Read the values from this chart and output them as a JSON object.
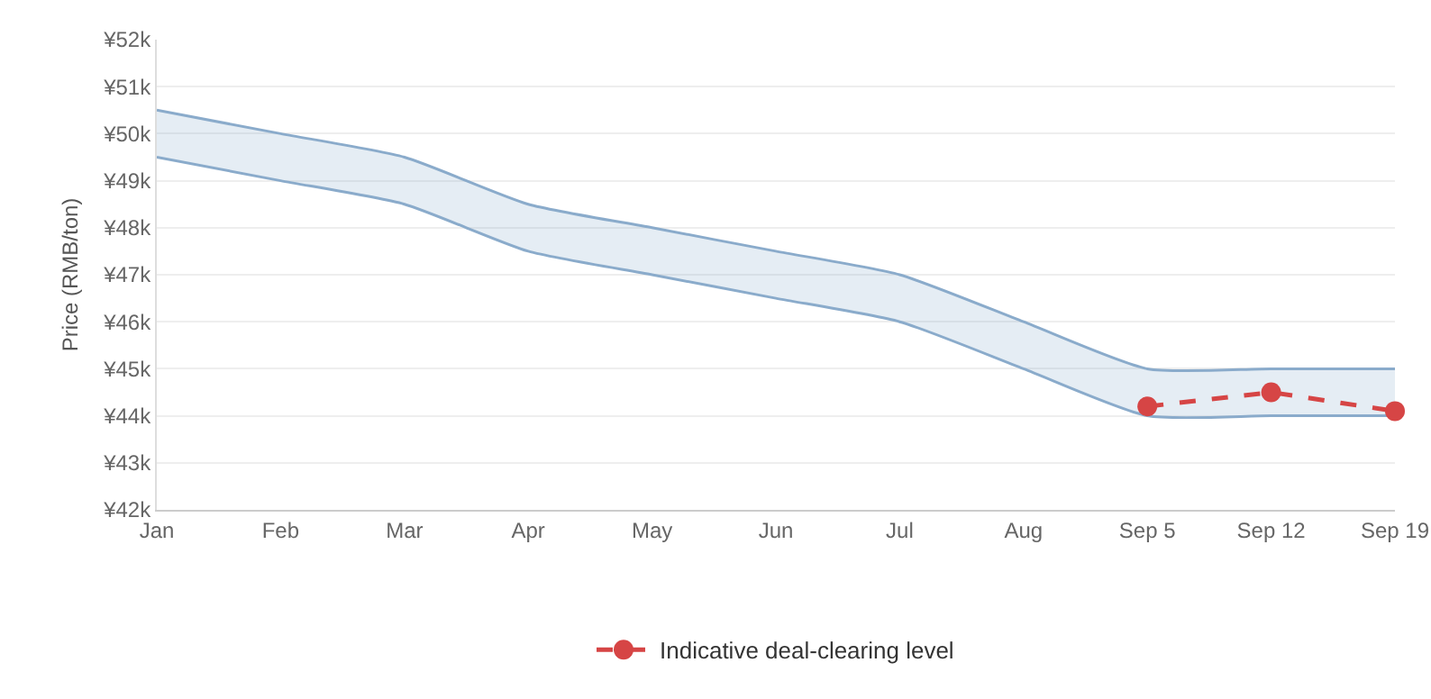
{
  "chart_data": {
    "type": "line",
    "ylabel": "Price (RMB/ton)",
    "categories": [
      "Jan",
      "Feb",
      "Mar",
      "Apr",
      "May",
      "Jun",
      "Jul",
      "Aug",
      "Sep 5",
      "Sep 12",
      "Sep 19"
    ],
    "series": [
      {
        "type": "line",
        "color": "#8aabcb",
        "marker": "none",
        "values": [
          49500,
          49000,
          48500,
          47500,
          47000,
          46500,
          46000,
          45000,
          44000,
          44000,
          44000
        ]
      },
      {
        "type": "area",
        "color": "#8aabcb",
        "values": [
          50500,
          50000,
          49500,
          48500,
          48000,
          47500,
          47000,
          46000,
          45000,
          45000,
          45000
        ]
      },
      {
        "name": "Indicative deal-clearing level",
        "type": "line",
        "color": "#d64545",
        "marker": "circle",
        "line_style": "dashed",
        "values": [
          null,
          null,
          null,
          null,
          null,
          null,
          null,
          null,
          44200,
          44500,
          44100
        ]
      }
    ],
    "ylim": [
      42000,
      52000
    ],
    "yticks": [
      {
        "value": 42000,
        "label": "¥42k"
      },
      {
        "value": 43000,
        "label": "¥43k"
      },
      {
        "value": 44000,
        "label": "¥44k"
      },
      {
        "value": 45000,
        "label": "¥45k"
      },
      {
        "value": 46000,
        "label": "¥46k"
      },
      {
        "value": 47000,
        "label": "¥47k"
      },
      {
        "value": 48000,
        "label": "¥48k"
      },
      {
        "value": 49000,
        "label": "¥49k"
      },
      {
        "value": 50000,
        "label": "¥50k"
      },
      {
        "value": 51000,
        "label": "¥51k"
      },
      {
        "value": 52000,
        "label": "¥52k"
      }
    ],
    "grid": "y",
    "legend": "bottom"
  }
}
